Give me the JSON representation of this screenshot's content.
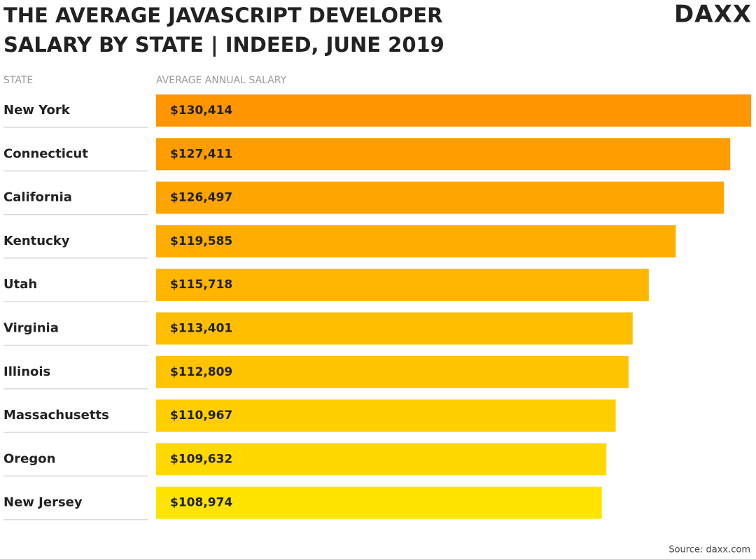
{
  "chart_data": {
    "type": "bar",
    "orientation": "horizontal",
    "title": [
      "THE AVERAGE JAVASCRIPT DEVELOPER",
      "SALARY BY STATE | INDEED, JUNE 2019"
    ],
    "logo": "DAXX",
    "category_header": "STATE",
    "value_header": "AVERAGE ANNUAL SALARY",
    "categories": [
      "New York",
      "Connecticut",
      "California",
      "Kentucky",
      "Utah",
      "Virginia",
      "Illinois",
      "Massachusetts",
      "Oregon",
      "New Jersey"
    ],
    "values": [
      130414,
      127411,
      126497,
      119585,
      115718,
      113401,
      112809,
      110967,
      109632,
      108974
    ],
    "value_labels": [
      "$130,414",
      "$127,411",
      "$126,497",
      "$119,585",
      "$115,718",
      "$113,401",
      "$112,809",
      "$110,967",
      "$109,632",
      "$108,974"
    ],
    "colors": [
      "#ff9500",
      "#ff9d00",
      "#ffa500",
      "#ffad00",
      "#ffb600",
      "#ffbf00",
      "#ffc400",
      "#ffce00",
      "#ffd800",
      "#ffe400"
    ],
    "xlim": [
      45000,
      130500
    ],
    "source": "Source: daxx.com"
  }
}
